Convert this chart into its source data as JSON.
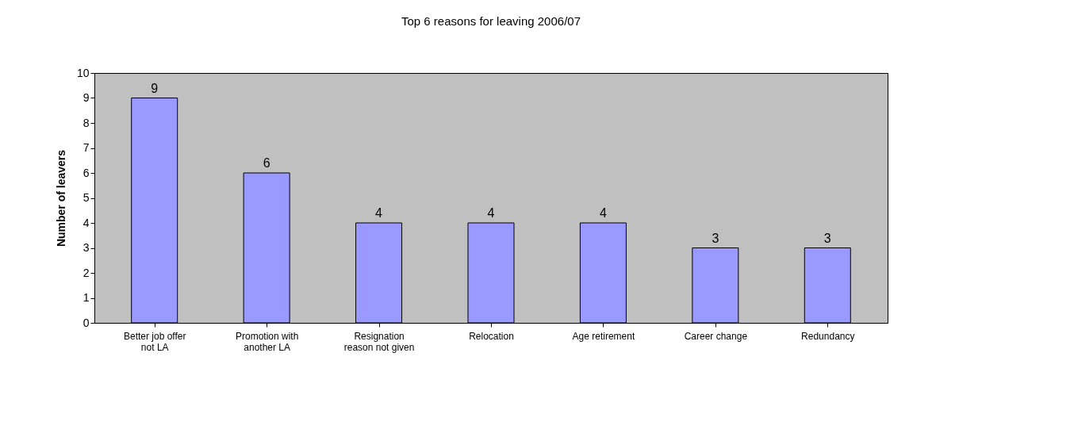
{
  "chart_data": {
    "type": "bar",
    "title": "Top 6 reasons for leaving 2006/07",
    "ylabel": "Number of leavers",
    "categories": [
      "Better job offer not LA",
      "Promotion with another LA",
      "Resignation reason not given",
      "Relocation",
      "Age retirement",
      "Career change",
      "Redundancy"
    ],
    "values": [
      9,
      6,
      4,
      4,
      4,
      3,
      3
    ],
    "color": "#9999ff",
    "ylim": [
      0,
      10
    ],
    "yticks": [
      0,
      1,
      2,
      3,
      4,
      5,
      6,
      7,
      8,
      9,
      10
    ],
    "grid": false,
    "data_labels": true
  }
}
